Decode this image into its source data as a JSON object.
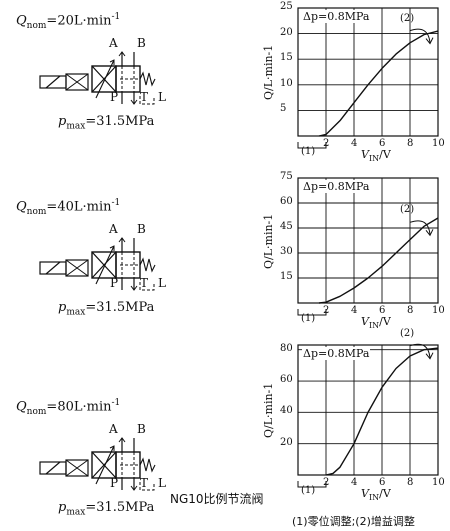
{
  "valves": [
    {
      "q_symbol": "Q",
      "q_sub": "nom",
      "q_value": "=20L·min",
      "q_sup": "-1",
      "p_symbol": "p",
      "p_sub": "max",
      "p_value": "=31.5MPa",
      "ports": {
        "a": "A",
        "b": "B",
        "p": "P",
        "t": "T",
        "l": "L"
      }
    },
    {
      "q_symbol": "Q",
      "q_sub": "nom",
      "q_value": "=40L·min",
      "q_sup": "-1",
      "p_symbol": "p",
      "p_sub": "max",
      "p_value": "=31.5MPa",
      "ports": {
        "a": "A",
        "b": "B",
        "p": "P",
        "t": "T",
        "l": "L"
      }
    },
    {
      "q_symbol": "Q",
      "q_sub": "nom",
      "q_value": "=80L·min",
      "q_sup": "-1",
      "p_symbol": "p",
      "p_sub": "max",
      "p_value": "=31.5MPa",
      "ports": {
        "a": "A",
        "b": "B",
        "p": "P",
        "t": "T",
        "l": "L"
      }
    }
  ],
  "charts": [
    {
      "dp_label": "Δp=0.8MPa",
      "ylabel": "Q/L·min-1",
      "xlabel_main": "V",
      "xlabel_sub": "IN",
      "xlabel_unit": "/V",
      "x_ticks": [
        "2",
        "4",
        "6",
        "8",
        "10"
      ],
      "y_ticks": [
        "5",
        "10",
        "15",
        "20",
        "25"
      ],
      "x_range": [
        0,
        10
      ],
      "y_range": [
        0,
        25
      ],
      "curve": [
        [
          1.5,
          0
        ],
        [
          2,
          0.3
        ],
        [
          3,
          3
        ],
        [
          4,
          6.5
        ],
        [
          5,
          10
        ],
        [
          6,
          13.2
        ],
        [
          7,
          16
        ],
        [
          8,
          18.2
        ],
        [
          9,
          19.8
        ],
        [
          10,
          20.5
        ]
      ],
      "zero_adj_label": "(1)",
      "gain_adj_label": "(2)"
    },
    {
      "dp_label": "Δp=0.8MPa",
      "ylabel": "Q/L·min-1",
      "xlabel_main": "V",
      "xlabel_sub": "IN",
      "xlabel_unit": "/V",
      "x_ticks": [
        "2",
        "4",
        "6",
        "8",
        "10"
      ],
      "y_ticks": [
        "15",
        "30",
        "45",
        "60",
        "75"
      ],
      "x_range": [
        0,
        10
      ],
      "y_range": [
        0,
        75
      ],
      "curve": [
        [
          1.5,
          0
        ],
        [
          2,
          0.5
        ],
        [
          3,
          4
        ],
        [
          4,
          9
        ],
        [
          5,
          15
        ],
        [
          6,
          22
        ],
        [
          7,
          30
        ],
        [
          8,
          38
        ],
        [
          9,
          46
        ],
        [
          10,
          51
        ]
      ],
      "zero_adj_label": "(1)",
      "gain_adj_label": "(2)"
    },
    {
      "dp_label": "Δp=0.8MPa",
      "ylabel": "Q/L·min-1",
      "xlabel_main": "V",
      "xlabel_sub": "IN",
      "xlabel_unit": "/V",
      "x_ticks": [
        "2",
        "4",
        "6",
        "8",
        "10"
      ],
      "y_ticks": [
        "20",
        "40",
        "60",
        "80"
      ],
      "x_range": [
        0,
        10
      ],
      "y_range": [
        0,
        83
      ],
      "curve": [
        [
          2,
          0
        ],
        [
          2.5,
          1
        ],
        [
          3,
          5
        ],
        [
          4,
          20
        ],
        [
          5,
          40
        ],
        [
          6,
          56
        ],
        [
          7,
          68
        ],
        [
          8,
          76
        ],
        [
          9,
          80
        ],
        [
          10,
          81
        ]
      ],
      "zero_adj_label": "(1)",
      "gain_adj_label": "(2)"
    }
  ],
  "caption": "NG10比例节流阀",
  "legend": "(1)零位调整;(2)增益调整"
}
